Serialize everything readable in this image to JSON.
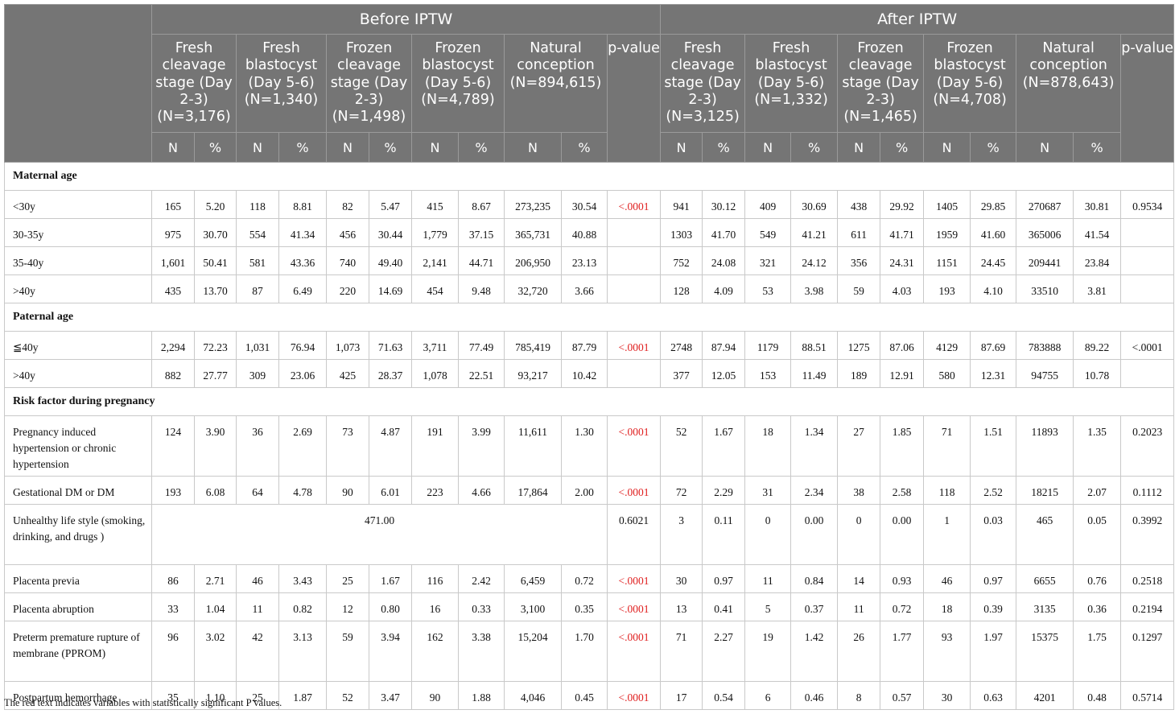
{
  "header": {
    "before_label": "Before IPTW",
    "after_label": "After IPTW",
    "before_groups": [
      "Fresh cleavage stage (Day 2-3) (N=3,176)",
      "Fresh blastocyst (Day 5-6) (N=1,340)",
      "Frozen cleavage stage (Day 2-3) (N=1,498)",
      "Frozen blastocyst (Day 5-6) (N=4,789)",
      "Natural conception (N=894,615)"
    ],
    "after_groups": [
      "Fresh cleavage stage (Day 2-3) (N=3,125)",
      "Fresh blastocyst (Day 5-6) (N=1,332)",
      "Frozen cleavage stage (Day 2-3) (N=1,465)",
      "Frozen blastocyst (Day 5-6) (N=4,708)",
      "Natural conception (N=878,643)"
    ],
    "pvalue_label": "p-value",
    "n_label": "N",
    "pct_label": "%"
  },
  "sections": [
    {
      "title": "Maternal age",
      "rows": [
        {
          "label": "<30y",
          "before": [
            "165",
            "5.20",
            "118",
            "8.81",
            "82",
            "5.47",
            "415",
            "8.67",
            "273,235",
            "30.54"
          ],
          "p_before": "<.0001",
          "after": [
            "941",
            "30.12",
            "409",
            "30.69",
            "438",
            "29.92",
            "1405",
            "29.85",
            "270687",
            "30.81"
          ],
          "p_after": "0.9534"
        },
        {
          "label": "30-35y",
          "before": [
            "975",
            "30.70",
            "554",
            "41.34",
            "456",
            "30.44",
            "1,779",
            "37.15",
            "365,731",
            "40.88"
          ],
          "p_before": "",
          "after": [
            "1303",
            "41.70",
            "549",
            "41.21",
            "611",
            "41.71",
            "1959",
            "41.60",
            "365006",
            "41.54"
          ],
          "p_after": ""
        },
        {
          "label": "35-40y",
          "before": [
            "1,601",
            "50.41",
            "581",
            "43.36",
            "740",
            "49.40",
            "2,141",
            "44.71",
            "206,950",
            "23.13"
          ],
          "p_before": "",
          "after": [
            "752",
            "24.08",
            "321",
            "24.12",
            "356",
            "24.31",
            "1151",
            "24.45",
            "209441",
            "23.84"
          ],
          "p_after": ""
        },
        {
          "label": ">40y",
          "before": [
            "435",
            "13.70",
            "87",
            "6.49",
            "220",
            "14.69",
            "454",
            "9.48",
            "32,720",
            "3.66"
          ],
          "p_before": "",
          "after": [
            "128",
            "4.09",
            "53",
            "3.98",
            "59",
            "4.03",
            "193",
            "4.10",
            "33510",
            "3.81"
          ],
          "p_after": ""
        }
      ]
    },
    {
      "title": "Paternal age",
      "rows": [
        {
          "label": "≦40y",
          "before": [
            "2,294",
            "72.23",
            "1,031",
            "76.94",
            "1,073",
            "71.63",
            "3,711",
            "77.49",
            "785,419",
            "87.79"
          ],
          "p_before": "<.0001",
          "after": [
            "2748",
            "87.94",
            "1179",
            "88.51",
            "1275",
            "87.06",
            "4129",
            "87.69",
            "783888",
            "89.22"
          ],
          "p_after": "<.0001"
        },
        {
          "label": ">40y",
          "before": [
            "882",
            "27.77",
            "309",
            "23.06",
            "425",
            "28.37",
            "1,078",
            "22.51",
            "93,217",
            "10.42"
          ],
          "p_before": "",
          "after": [
            "377",
            "12.05",
            "153",
            "11.49",
            "189",
            "12.91",
            "580",
            "12.31",
            "94755",
            "10.78"
          ],
          "p_after": ""
        }
      ]
    },
    {
      "title": "Risk factor during pregnancy",
      "rows": [
        {
          "label": "Pregnancy induced hypertension or chronic hypertension",
          "before": [
            "124",
            "3.90",
            "36",
            "2.69",
            "73",
            "4.87",
            "191",
            "3.99",
            "11,611",
            "1.30"
          ],
          "p_before": "<.0001",
          "after": [
            "52",
            "1.67",
            "18",
            "1.34",
            "27",
            "1.85",
            "71",
            "1.51",
            "11893",
            "1.35"
          ],
          "p_after": "0.2023"
        },
        {
          "label": "Gestational DM or DM",
          "before": [
            "193",
            "6.08",
            "64",
            "4.78",
            "90",
            "6.01",
            "223",
            "4.66",
            "17,864",
            "2.00"
          ],
          "p_before": "<.0001",
          "after": [
            "72",
            "2.29",
            "31",
            "2.34",
            "38",
            "2.58",
            "118",
            "2.52",
            "18215",
            "2.07"
          ],
          "p_after": "0.1112"
        },
        {
          "label": "Unhealthy life style (smoking, drinking, and drugs )",
          "before_merged": "471.00",
          "p_before": "0.6021",
          "after": [
            "3",
            "0.11",
            "0",
            "0.00",
            "0",
            "0.00",
            "1",
            "0.03",
            "465",
            "0.05"
          ],
          "p_after": "0.3992"
        },
        {
          "label": "Placenta previa",
          "before": [
            "86",
            "2.71",
            "46",
            "3.43",
            "25",
            "1.67",
            "116",
            "2.42",
            "6,459",
            "0.72"
          ],
          "p_before": "<.0001",
          "after": [
            "30",
            "0.97",
            "11",
            "0.84",
            "14",
            "0.93",
            "46",
            "0.97",
            "6655",
            "0.76"
          ],
          "p_after": "0.2518"
        },
        {
          "label": "Placenta abruption",
          "before": [
            "33",
            "1.04",
            "11",
            "0.82",
            "12",
            "0.80",
            "16",
            "0.33",
            "3,100",
            "0.35"
          ],
          "p_before": "<.0001",
          "after": [
            "13",
            "0.41",
            "5",
            "0.37",
            "11",
            "0.72",
            "18",
            "0.39",
            "3135",
            "0.36"
          ],
          "p_after": "0.2194"
        },
        {
          "label": "Preterm premature rupture of membrane (PPROM)",
          "before": [
            "96",
            "3.02",
            "42",
            "3.13",
            "59",
            "3.94",
            "162",
            "3.38",
            "15,204",
            "1.70"
          ],
          "p_before": "<.0001",
          "after": [
            "71",
            "2.27",
            "19",
            "1.42",
            "26",
            "1.77",
            "93",
            "1.97",
            "15375",
            "1.75"
          ],
          "p_after": "0.1297"
        },
        {
          "label": "Postpartum hemorrhage",
          "before": [
            "35",
            "1.10",
            "25",
            "1.87",
            "52",
            "3.47",
            "90",
            "1.88",
            "4,046",
            "0.45"
          ],
          "p_before": "<.0001",
          "after": [
            "17",
            "0.54",
            "6",
            "0.46",
            "8",
            "0.57",
            "30",
            "0.63",
            "4201",
            "0.48"
          ],
          "p_after": "0.5714"
        }
      ]
    }
  ],
  "footnote": "The red text indicates variables with statistically significant P values.",
  "colors": {
    "header_bg": "#757575",
    "significant": "#e02020"
  }
}
